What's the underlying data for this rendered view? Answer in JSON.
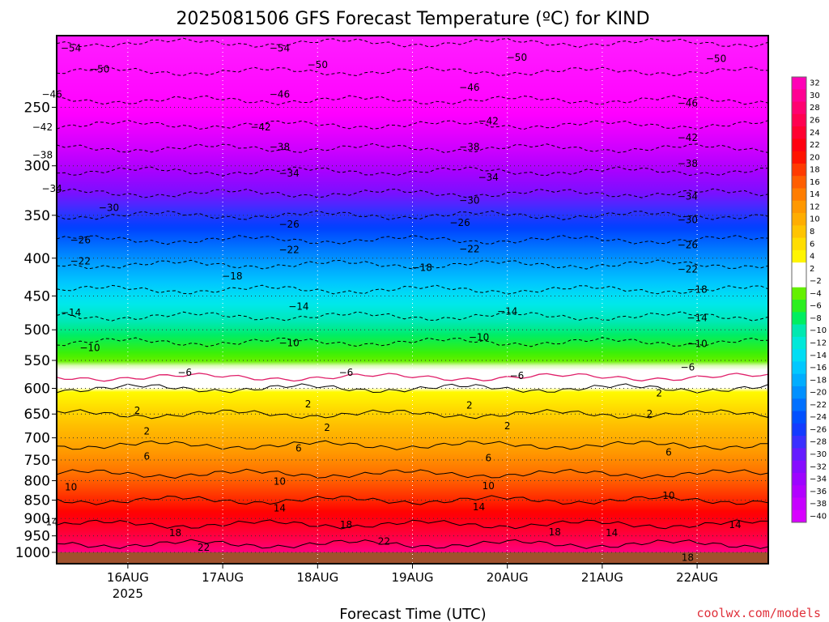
{
  "chart_data": {
    "type": "heatmap",
    "title": "2025081506 GFS Forecast Temperature (ºC) for KIND",
    "xlabel": "Forecast Time (UTC)",
    "ylabel": "",
    "credit": "coolwx.com/models",
    "x_ticks": [
      {
        "day": 16,
        "label": "16AUG",
        "sub": "2025"
      },
      {
        "day": 17,
        "label": "17AUG",
        "sub": ""
      },
      {
        "day": 18,
        "label": "18AUG",
        "sub": ""
      },
      {
        "day": 19,
        "label": "19AUG",
        "sub": ""
      },
      {
        "day": 20,
        "label": "20AUG",
        "sub": ""
      },
      {
        "day": 21,
        "label": "21AUG",
        "sub": ""
      },
      {
        "day": 22,
        "label": "22AUG",
        "sub": ""
      }
    ],
    "xlim": [
      "2025-08-15 06Z",
      "2025-08-22 18Z"
    ],
    "y_ticks": [
      250,
      300,
      350,
      400,
      450,
      500,
      550,
      600,
      650,
      700,
      750,
      800,
      850,
      900,
      950,
      1000
    ],
    "ylim_hPa": [
      1000,
      200
    ],
    "y_scale": "log-pressure, reversed",
    "colorbar": {
      "labels": [
        32,
        30,
        28,
        26,
        24,
        22,
        20,
        18,
        16,
        14,
        12,
        10,
        8,
        6,
        4,
        2,
        -2,
        -4,
        -6,
        -8,
        -10,
        -12,
        -14,
        -16,
        -18,
        -20,
        -22,
        -24,
        -26,
        -28,
        -30,
        -32,
        -34,
        -36,
        -38,
        -40
      ]
    },
    "profile": {
      "pressure_hPa": [
        1000,
        950,
        900,
        850,
        800,
        750,
        700,
        650,
        600,
        550,
        500,
        450,
        400,
        350,
        300,
        250,
        200
      ],
      "temperature_C": [
        28,
        24,
        21,
        18,
        15,
        12,
        9,
        6,
        2,
        -3,
        -8,
        -13,
        -19,
        -26,
        -35,
        -45,
        -55
      ]
    },
    "contour_labels": [
      {
        "value": -54,
        "day": 15.4,
        "p": 208
      },
      {
        "value": -54,
        "day": 17.6,
        "p": 208
      },
      {
        "value": -50,
        "day": 15.7,
        "p": 222
      },
      {
        "value": -50,
        "day": 18.0,
        "p": 219
      },
      {
        "value": -50,
        "day": 20.1,
        "p": 214
      },
      {
        "value": -50,
        "day": 22.2,
        "p": 215
      },
      {
        "value": -46,
        "day": 15.2,
        "p": 240
      },
      {
        "value": -46,
        "day": 17.6,
        "p": 240
      },
      {
        "value": -46,
        "day": 19.6,
        "p": 235
      },
      {
        "value": -46,
        "day": 21.9,
        "p": 247
      },
      {
        "value": -42,
        "day": 15.1,
        "p": 266
      },
      {
        "value": -42,
        "day": 17.4,
        "p": 266
      },
      {
        "value": -42,
        "day": 19.8,
        "p": 261
      },
      {
        "value": -42,
        "day": 21.9,
        "p": 275
      },
      {
        "value": -38,
        "day": 15.1,
        "p": 290
      },
      {
        "value": -38,
        "day": 17.6,
        "p": 283
      },
      {
        "value": -38,
        "day": 19.6,
        "p": 283
      },
      {
        "value": -38,
        "day": 21.9,
        "p": 298
      },
      {
        "value": -34,
        "day": 15.2,
        "p": 322
      },
      {
        "value": -34,
        "day": 17.7,
        "p": 307
      },
      {
        "value": -34,
        "day": 19.8,
        "p": 311
      },
      {
        "value": -34,
        "day": 21.9,
        "p": 330
      },
      {
        "value": -30,
        "day": 15.8,
        "p": 342
      },
      {
        "value": -30,
        "day": 19.6,
        "p": 334
      },
      {
        "value": -30,
        "day": 21.9,
        "p": 355
      },
      {
        "value": -26,
        "day": 15.5,
        "p": 378
      },
      {
        "value": -26,
        "day": 17.7,
        "p": 360
      },
      {
        "value": -26,
        "day": 19.5,
        "p": 358
      },
      {
        "value": -26,
        "day": 21.9,
        "p": 384
      },
      {
        "value": -22,
        "day": 15.5,
        "p": 404
      },
      {
        "value": -22,
        "day": 17.7,
        "p": 390
      },
      {
        "value": -22,
        "day": 19.6,
        "p": 389
      },
      {
        "value": -22,
        "day": 21.9,
        "p": 414
      },
      {
        "value": -18,
        "day": 17.1,
        "p": 423
      },
      {
        "value": -18,
        "day": 19.1,
        "p": 412
      },
      {
        "value": -18,
        "day": 22.0,
        "p": 441
      },
      {
        "value": -14,
        "day": 15.4,
        "p": 474
      },
      {
        "value": -14,
        "day": 17.8,
        "p": 465
      },
      {
        "value": -14,
        "day": 20.0,
        "p": 472
      },
      {
        "value": -14,
        "day": 22.0,
        "p": 482
      },
      {
        "value": -10,
        "day": 15.6,
        "p": 529
      },
      {
        "value": -10,
        "day": 17.7,
        "p": 521
      },
      {
        "value": -10,
        "day": 19.7,
        "p": 512
      },
      {
        "value": -10,
        "day": 22.0,
        "p": 522
      },
      {
        "value": -6,
        "day": 16.6,
        "p": 571
      },
      {
        "value": -6,
        "day": 18.3,
        "p": 571
      },
      {
        "value": -6,
        "day": 20.1,
        "p": 577
      },
      {
        "value": -6,
        "day": 21.9,
        "p": 562
      },
      {
        "value": 2,
        "day": 16.1,
        "p": 643
      },
      {
        "value": 2,
        "day": 17.9,
        "p": 630
      },
      {
        "value": 2,
        "day": 19.6,
        "p": 633
      },
      {
        "value": 2,
        "day": 21.6,
        "p": 609
      },
      {
        "value": 2,
        "day": 16.2,
        "p": 686
      },
      {
        "value": 2,
        "day": 18.1,
        "p": 678
      },
      {
        "value": 2,
        "day": 20.0,
        "p": 675
      },
      {
        "value": 2,
        "day": 21.5,
        "p": 650
      },
      {
        "value": 6,
        "day": 16.2,
        "p": 742
      },
      {
        "value": 6,
        "day": 17.8,
        "p": 723
      },
      {
        "value": 6,
        "day": 19.8,
        "p": 745
      },
      {
        "value": 6,
        "day": 21.7,
        "p": 732
      },
      {
        "value": 10,
        "day": 15.4,
        "p": 816
      },
      {
        "value": 10,
        "day": 17.6,
        "p": 802
      },
      {
        "value": 10,
        "day": 19.8,
        "p": 813
      },
      {
        "value": 10,
        "day": 21.7,
        "p": 838
      },
      {
        "value": 14,
        "day": 17.6,
        "p": 872
      },
      {
        "value": 14,
        "day": 19.7,
        "p": 868
      },
      {
        "value": 14,
        "day": 15.2,
        "p": 910
      },
      {
        "value": 14,
        "day": 21.1,
        "p": 941
      },
      {
        "value": 14,
        "day": 22.4,
        "p": 918
      },
      {
        "value": 18,
        "day": 16.5,
        "p": 941
      },
      {
        "value": 18,
        "day": 18.3,
        "p": 918
      },
      {
        "value": 18,
        "day": 20.5,
        "p": 939
      },
      {
        "value": 18,
        "day": 21.9,
        "p": 1017
      },
      {
        "value": 22,
        "day": 16.8,
        "p": 985
      },
      {
        "value": 22,
        "day": 18.7,
        "p": 966
      }
    ]
  }
}
